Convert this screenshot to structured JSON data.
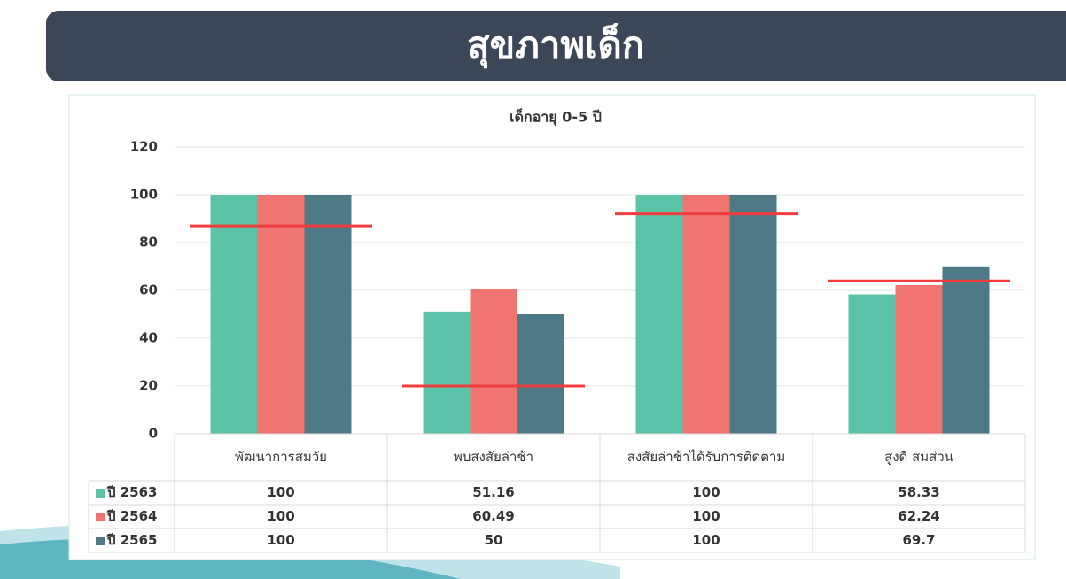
{
  "header": {
    "title": "สุขภาพเด็ก"
  },
  "chart_data": {
    "type": "bar",
    "title": "เด็กอายุ 0-5 ปี",
    "categories": [
      "พัฒนาการสมวัย",
      "พบสงสัยล่าช้า",
      "สงสัยล่าช้าได้รับการติดตาม",
      "สูงดี สมส่วน"
    ],
    "series": [
      {
        "name": "ปี 2563",
        "color": "#5bc4a8",
        "values": [
          100,
          51.16,
          100,
          58.33
        ]
      },
      {
        "name": "ปี 2564",
        "color": "#f07470",
        "values": [
          100,
          60.49,
          100,
          62.24
        ]
      },
      {
        "name": "ปี 2565",
        "color": "#4e7a87",
        "values": [
          100,
          50,
          100,
          69.7
        ]
      }
    ],
    "target_lines": {
      "color": "#f03c3c",
      "values": [
        87,
        20,
        92,
        64
      ]
    },
    "ylim": [
      0,
      120
    ],
    "yticks": [
      0,
      20,
      40,
      60,
      80,
      100,
      120
    ],
    "grid": true
  }
}
